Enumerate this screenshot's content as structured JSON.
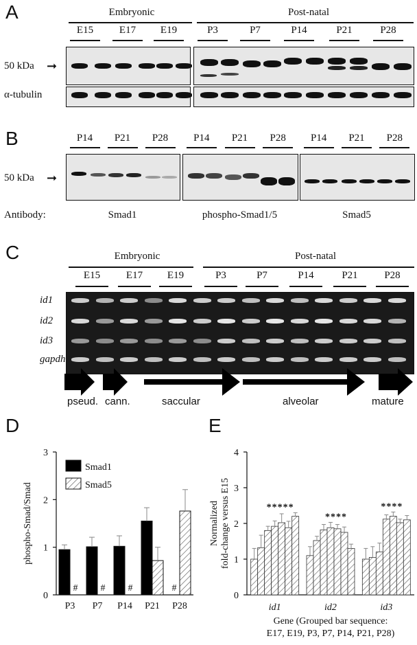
{
  "panelA": {
    "letter": "A",
    "groups": [
      {
        "label": "Embryonic"
      },
      {
        "label": "Post-natal"
      }
    ],
    "lanes": [
      "E15",
      "E17",
      "E19",
      "P3",
      "P7",
      "P14",
      "P21",
      "P28"
    ],
    "marker": "50 kDa",
    "loading_label": "α-tubulin"
  },
  "panelB": {
    "letter": "B",
    "lanes": [
      "P14",
      "P21",
      "P28"
    ],
    "marker": "50 kDa",
    "antibody_label": "Antibody:",
    "antibodies": [
      "Smad1",
      "phospho-Smad1/5",
      "Smad5"
    ]
  },
  "panelC": {
    "letter": "C",
    "groups": [
      {
        "label": "Embryonic"
      },
      {
        "label": "Post-natal"
      }
    ],
    "lanes": [
      "E15",
      "E17",
      "E19",
      "P3",
      "P7",
      "P14",
      "P21",
      "P28"
    ],
    "rows": [
      "id1",
      "id2",
      "id3",
      "gapdh"
    ],
    "stages": [
      "pseud.",
      "cann.",
      "saccular",
      "alveolar",
      "mature"
    ]
  },
  "panelD": {
    "letter": "D",
    "chart_data": {
      "type": "bar",
      "ylabel": "phospho-Smad/Smad",
      "ylim": [
        0,
        3
      ],
      "yticks": [
        "0",
        "1",
        "2",
        "3"
      ],
      "categories": [
        "P3",
        "P7",
        "P14",
        "P21",
        "P28"
      ],
      "legend_position": "top-left",
      "series": [
        {
          "name": "Smad1",
          "values": [
            0.95,
            1.01,
            1.02,
            1.55,
            null
          ],
          "errors": [
            0.1,
            0.2,
            0.22,
            0.28,
            null
          ],
          "color": "#000000"
        },
        {
          "name": "Smad5",
          "values": [
            null,
            null,
            null,
            0.72,
            1.76
          ],
          "errors": [
            null,
            null,
            null,
            0.28,
            0.45
          ],
          "pattern": "hatched"
        }
      ],
      "annotations": [
        {
          "category": "P3",
          "series": "Smad5",
          "text": "#"
        },
        {
          "category": "P7",
          "series": "Smad5",
          "text": "#"
        },
        {
          "category": "P14",
          "series": "Smad5",
          "text": "#"
        },
        {
          "category": "P28",
          "series": "Smad1",
          "text": "#"
        }
      ]
    }
  },
  "panelE": {
    "letter": "E",
    "chart_data": {
      "type": "bar",
      "ylabel_lines": [
        "Normalized",
        "fold-change versus E15"
      ],
      "ylim": [
        0,
        4
      ],
      "yticks": [
        "0",
        "1",
        "2",
        "3",
        "4"
      ],
      "categories": [
        "id1",
        "id2",
        "id3"
      ],
      "xlabel_lines": [
        "Gene (Grouped bar sequence:",
        "E17, E19, P3, P7, P14, P21, P28)"
      ],
      "bar_sequence": [
        "E17",
        "E19",
        "P3",
        "P7",
        "P14",
        "P21",
        "P28"
      ],
      "groups": [
        {
          "gene": "id1",
          "values": [
            1.0,
            1.32,
            1.8,
            1.92,
            2.02,
            1.88,
            2.2
          ],
          "errors": [
            0.3,
            0.35,
            0.12,
            0.15,
            0.25,
            0.18,
            0.1
          ],
          "significance": "*****"
        },
        {
          "gene": "id2",
          "values": [
            1.1,
            1.52,
            1.82,
            1.88,
            1.85,
            1.75,
            1.3
          ],
          "errors": [
            0.25,
            0.12,
            0.15,
            0.15,
            0.12,
            0.15,
            0.12
          ],
          "significance": "****"
        },
        {
          "gene": "id3",
          "values": [
            1.0,
            1.05,
            1.2,
            2.12,
            2.2,
            2.02,
            2.1
          ],
          "errors": [
            0.3,
            0.3,
            0.25,
            0.12,
            0.12,
            0.1,
            0.12
          ],
          "significance": "****"
        }
      ]
    }
  }
}
